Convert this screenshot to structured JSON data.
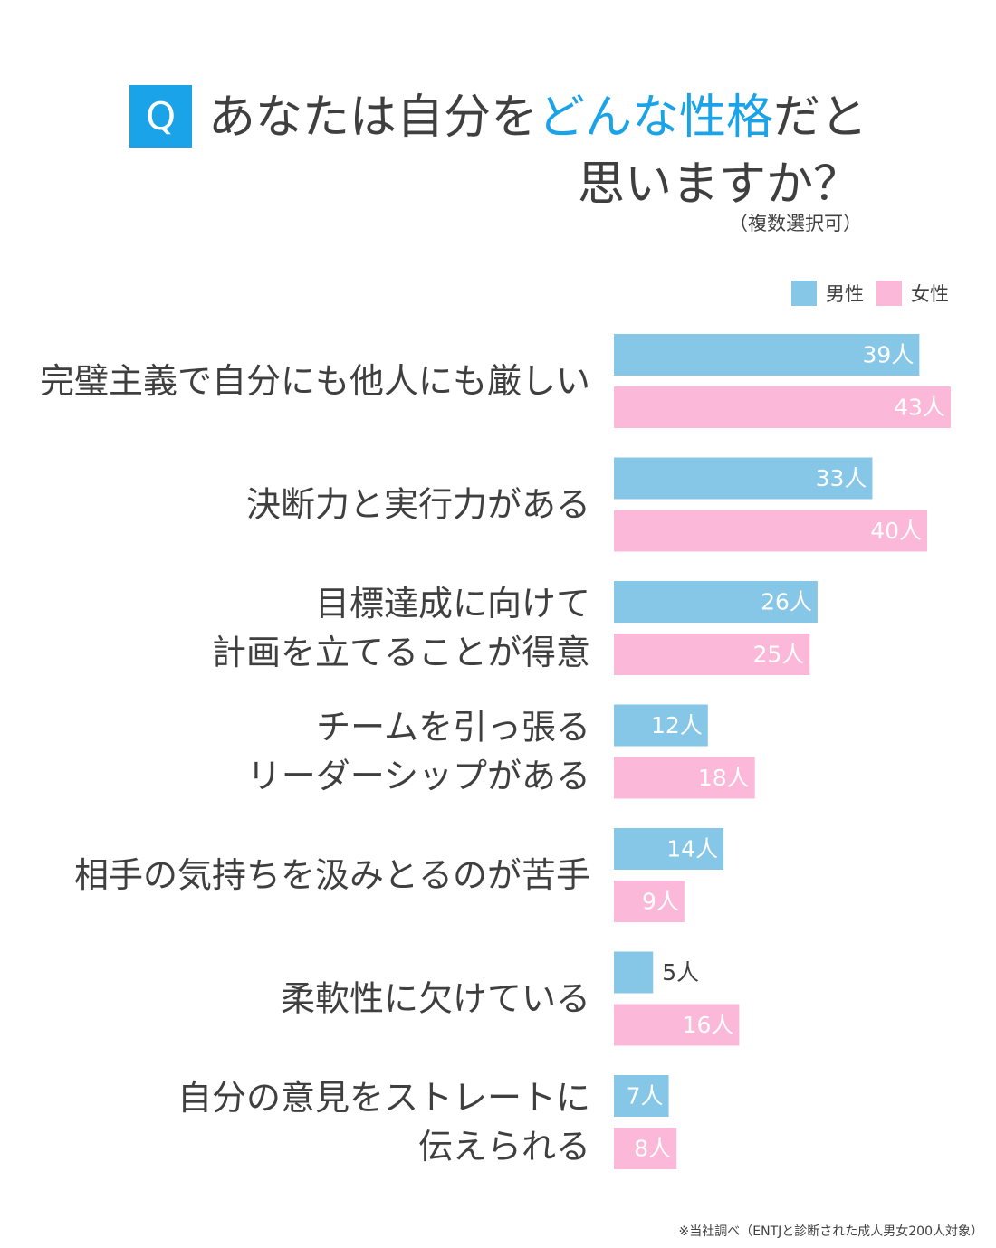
{
  "header": {
    "badge": "Q",
    "title_pre": "あなたは自分を",
    "title_highlight": "どんな性格",
    "title_post": "だと",
    "title_line2": "思いますか？",
    "note": "（複数選択可）"
  },
  "legend": [
    {
      "label": "男性",
      "color": "#86c7e8"
    },
    {
      "label": "女性",
      "color": "#fbb8d8"
    }
  ],
  "chart_data": {
    "type": "bar",
    "orientation": "horizontal",
    "categories": [
      [
        "完璧主義で自分にも他人にも厳しい"
      ],
      [
        "決断力と実行力がある"
      ],
      [
        "目標達成に向けて",
        "計画を立てることが得意"
      ],
      [
        "チームを引っ張る",
        "リーダーシップがある"
      ],
      [
        "相手の気持ちを汲みとるのが苦手"
      ],
      [
        "柔軟性に欠けている"
      ],
      [
        "自分の意見をストレートに",
        "伝えられる"
      ]
    ],
    "series": [
      {
        "name": "男性",
        "color": "#86c7e8",
        "values": [
          39,
          33,
          26,
          12,
          14,
          5,
          7
        ],
        "labels": [
          "39人",
          "33人",
          "26人",
          "12人",
          "14人",
          "5人",
          "7人"
        ]
      },
      {
        "name": "女性",
        "color": "#fbb8d8",
        "values": [
          43,
          40,
          25,
          18,
          9,
          16,
          8
        ],
        "labels": [
          "43人",
          "40人",
          "25人",
          "18人",
          "9人",
          "16人",
          "8人"
        ]
      }
    ],
    "unit": "人",
    "legend_position": "top-right",
    "grid": false
  },
  "footnote": "※当社調べ（ENTJと診断された成人男女200人対象）"
}
